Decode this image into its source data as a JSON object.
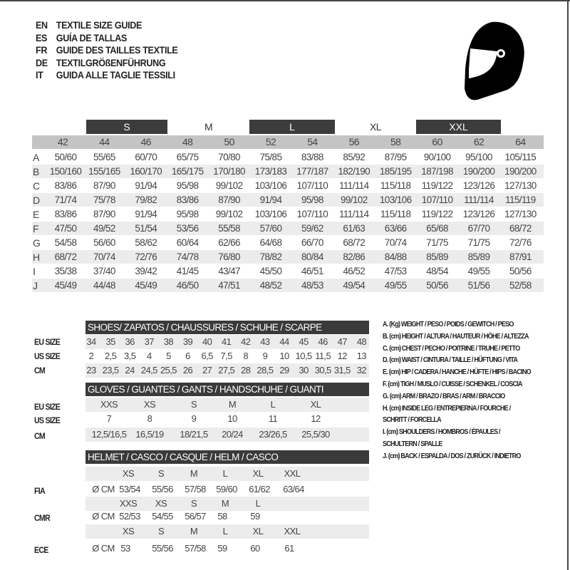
{
  "titles": [
    {
      "code": "EN",
      "text": "TEXTILE SIZE GUIDE"
    },
    {
      "code": "ES",
      "text": "GUÍA DE TALLAS"
    },
    {
      "code": "FR",
      "text": "GUIDE DES TAILLES TEXTILE"
    },
    {
      "code": "DE",
      "text": "TEXTILGRÖßENFÜHRUNG"
    },
    {
      "code": "IT",
      "text": "GUIDA ALLE TAGLIE TESSILI"
    }
  ],
  "icon": "helmet-icon",
  "textile": {
    "size_groups": [
      {
        "label": "S",
        "dark": true
      },
      {
        "label": "M",
        "dark": false
      },
      {
        "label": "L",
        "dark": true
      },
      {
        "label": "XL",
        "dark": false
      },
      {
        "label": "XXL",
        "dark": true
      }
    ],
    "columns": [
      "42",
      "44",
      "46",
      "48",
      "50",
      "52",
      "54",
      "56",
      "58",
      "60",
      "62",
      "64"
    ],
    "rows": [
      {
        "key": "A",
        "values": [
          "50/60",
          "55/65",
          "60/70",
          "65/75",
          "70/80",
          "75/85",
          "83/88",
          "85/92",
          "87/95",
          "90/100",
          "95/100",
          "105/115"
        ]
      },
      {
        "key": "B",
        "values": [
          "150/160",
          "155/165",
          "160/170",
          "165/175",
          "170/180",
          "173/183",
          "177/187",
          "182/190",
          "185/195",
          "187/198",
          "190/200",
          "190/200"
        ]
      },
      {
        "key": "C",
        "values": [
          "83/86",
          "87/90",
          "91/94",
          "95/98",
          "99/102",
          "103/106",
          "107/110",
          "111/114",
          "115/118",
          "119/122",
          "123/126",
          "127/130"
        ]
      },
      {
        "key": "D",
        "values": [
          "71/74",
          "75/78",
          "79/82",
          "83/86",
          "87/90",
          "91/94",
          "95/98",
          "99/102",
          "103/106",
          "107/110",
          "111/114",
          "115/119"
        ]
      },
      {
        "key": "E",
        "values": [
          "83/86",
          "87/90",
          "91/94",
          "95/98",
          "99/102",
          "103/106",
          "107/110",
          "111/114",
          "115/118",
          "119/122",
          "123/126",
          "127/130"
        ]
      },
      {
        "key": "F",
        "values": [
          "47/50",
          "49/52",
          "51/54",
          "53/56",
          "55/58",
          "57/60",
          "59/62",
          "61/63",
          "63/66",
          "65/68",
          "67/70",
          "68/72"
        ]
      },
      {
        "key": "G",
        "values": [
          "54/58",
          "56/60",
          "58/62",
          "60/64",
          "62/66",
          "64/68",
          "66/70",
          "68/72",
          "70/74",
          "71/75",
          "71/75",
          "72/76"
        ]
      },
      {
        "key": "H",
        "values": [
          "68/72",
          "70/74",
          "72/76",
          "74/78",
          "76/80",
          "78/82",
          "80/84",
          "82/86",
          "84/88",
          "85/89",
          "85/89",
          "87/91"
        ]
      },
      {
        "key": "I",
        "values": [
          "35/38",
          "37/40",
          "39/42",
          "41/45",
          "43/47",
          "45/50",
          "46/51",
          "46/52",
          "47/53",
          "48/54",
          "49/55",
          "50/56"
        ]
      },
      {
        "key": "J",
        "values": [
          "45/49",
          "44/48",
          "45/49",
          "46/50",
          "47/51",
          "48/52",
          "48/53",
          "49/54",
          "49/55",
          "50/56",
          "51/56",
          "52/58"
        ]
      }
    ]
  },
  "shoes": {
    "title": "SHOES/ ZAPATOS / CHAUSSURES / SCHUHE / SCARPE",
    "rows": [
      {
        "label": "EU SIZE",
        "values": [
          "34",
          "35",
          "36",
          "37",
          "38",
          "39",
          "40",
          "41",
          "42",
          "43",
          "44",
          "45",
          "46",
          "47",
          "48"
        ]
      },
      {
        "label": "US SIZE",
        "values": [
          "2",
          "2,5",
          "3,5",
          "4",
          "5",
          "6",
          "6,5",
          "7,5",
          "8",
          "9",
          "10",
          "10,5",
          "11,5",
          "12",
          "13"
        ]
      },
      {
        "label": "CM",
        "values": [
          "23",
          "23,5",
          "24",
          "24,5",
          "25,5",
          "26",
          "27",
          "27,5",
          "28",
          "28,5",
          "29",
          "30",
          "30,5",
          "31,5",
          "32"
        ]
      }
    ]
  },
  "gloves": {
    "title": "GLOVES / GUANTES / GANTS / HANDSCHUHE / GUANTI",
    "rows": [
      {
        "label": "EU SIZE",
        "values": [
          "XXS",
          "XS",
          "S",
          "M",
          "L",
          "XL"
        ]
      },
      {
        "label": "US SIZE",
        "values": [
          "7",
          "8",
          "9",
          "10",
          "11",
          "12"
        ]
      },
      {
        "label": "CM",
        "values": [
          "12,5/16,5",
          "16,5/19",
          "18/21,5",
          "20/24",
          "23/26,5",
          "25,5/30"
        ]
      }
    ]
  },
  "helmet": {
    "title": "HELMET / CASCO / CASQUE / HELM / CASCO",
    "unit": "Ø CM",
    "standards": [
      {
        "label": "FIA",
        "sizes": [
          "XS",
          "S",
          "M",
          "L",
          "XL",
          "XXL"
        ],
        "values": [
          "53/54",
          "55/56",
          "57/58",
          "59/60",
          "61/62",
          "63/64"
        ]
      },
      {
        "label": "CMR",
        "sizes": [
          "XXS",
          "XS",
          "S",
          "M",
          "L"
        ],
        "values": [
          "52/53",
          "54/55",
          "56/57",
          "58",
          "59"
        ]
      },
      {
        "label": "ECE",
        "sizes": [
          "XS",
          "S",
          "M",
          "L",
          "XL",
          "XXL"
        ],
        "values": [
          "53",
          "55/56",
          "57/58",
          "59",
          "60",
          "61"
        ]
      }
    ]
  },
  "legend": [
    "A. (Kg) WEIGHT / PESO / POIDS / GEWITCH / PESO",
    "B. (cm) HEIGHT / ALTURA / HAUTEUR / HÖHE / ALTEZZA",
    "C. (cm) CHEST / PECHO / POITRINE / TRUHE / PETTO",
    "D. (cm) WAIST / CINTURA / TAILLE / HÜFTUNG / VITA",
    "E. (cm) HIP / CADERA / HANCHE / HÜFTE / HIPS /  BACINO",
    "F.  (cm) TIGH / MUSLO / CUISSE / SCHENKEL / COSCIA",
    "G. (cm) ARM  / BRAZO / BRAS / ARM / BRACCIO",
    "H. (cm) INSIDE LEG / ENTREPIERNA / FOURCHE /",
    "SCHRITT / FORCELLA",
    "I.  (cm) SHOULDERS / HOMBROS / ÉPAULES /",
    "SCHULTERN / SPALLE",
    "J. (cm) BACK / ESPALDA / DOS / ZURÜCK / INDIETRO"
  ]
}
